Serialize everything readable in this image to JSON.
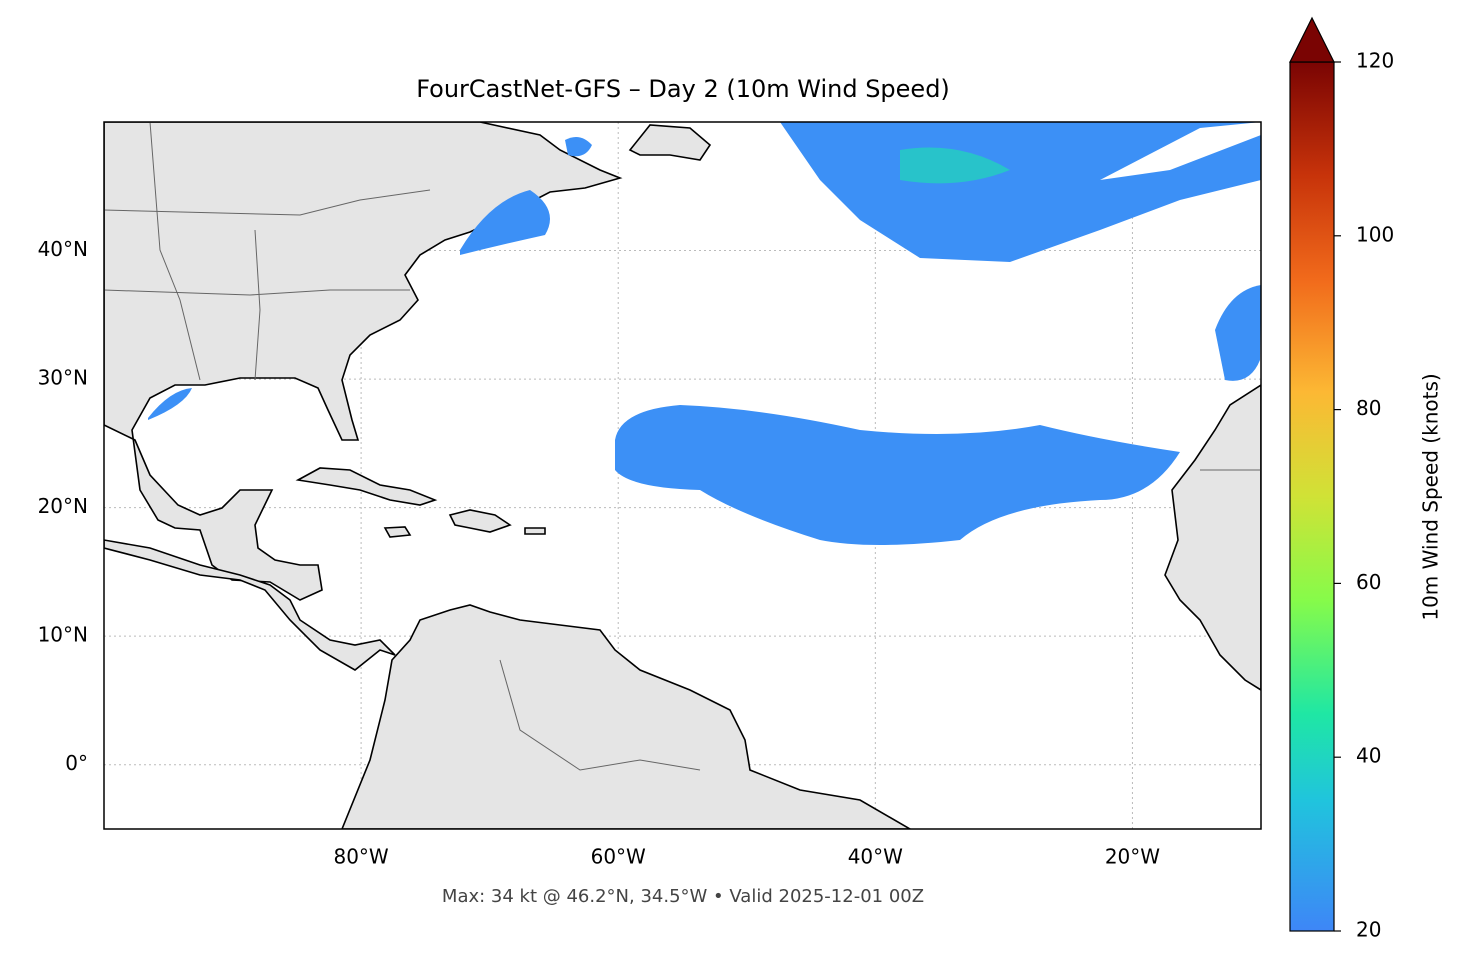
{
  "map": {
    "title": "FourCastNet-GFS – Day 2 (10m Wind Speed)",
    "footnote": "Max: 34 kt @ 46.2°N, 34.5°W • Valid 2025-12-01 00Z",
    "xlim": [
      -100,
      -10
    ],
    "ylim": [
      -5,
      50
    ],
    "xticks": [
      {
        "value": -80,
        "label": "80°W"
      },
      {
        "value": -60,
        "label": "60°W"
      },
      {
        "value": -40,
        "label": "40°W"
      },
      {
        "value": -20,
        "label": "20°W"
      }
    ],
    "yticks": [
      {
        "value": 0,
        "label": "0°"
      },
      {
        "value": 10,
        "label": "10°N"
      },
      {
        "value": 20,
        "label": "20°N"
      },
      {
        "value": 30,
        "label": "30°N"
      },
      {
        "value": 40,
        "label": "40°N"
      }
    ],
    "grid": true,
    "colorbar": {
      "label": "10m Wind Speed (knots)",
      "lim": [
        20,
        120
      ],
      "ticks": [
        20,
        40,
        60,
        80,
        100,
        120
      ],
      "extend": "max"
    }
  }
}
